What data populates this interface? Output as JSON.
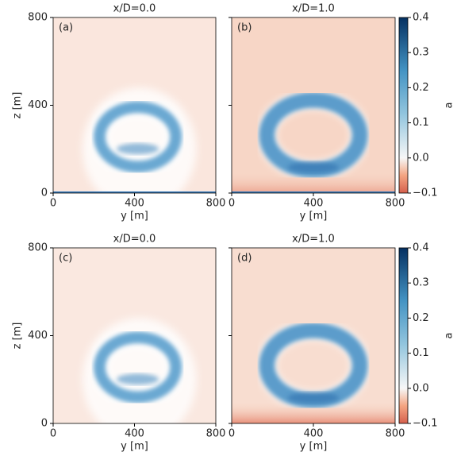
{
  "chart_data": [
    {
      "type": "heatmap",
      "title": "x/D=0.0",
      "panel_label": "(a)",
      "xlabel": "y [m]",
      "ylabel": "z [m]",
      "xlim": [
        0,
        800
      ],
      "ylim": [
        0,
        800
      ],
      "xticks": [
        0,
        400,
        800
      ],
      "yticks": [
        0,
        400,
        800
      ],
      "ytick_labels": true
    },
    {
      "type": "heatmap",
      "title": "x/D=1.0",
      "panel_label": "(b)",
      "xlabel": "y [m]",
      "xlim": [
        0,
        800
      ],
      "ylim": [
        0,
        800
      ],
      "xticks": [
        0,
        400,
        800
      ],
      "yticks": [
        0,
        400,
        800
      ],
      "ytick_labels": false,
      "colorbar": {
        "label": "a",
        "clim": [
          -0.1,
          0.4
        ],
        "ticks": [
          {
            "value": -0.1,
            "label": "−0.1"
          },
          {
            "value": 0,
            "label": "0.0"
          },
          0.1,
          0.2,
          0.3,
          0.4
        ]
      }
    },
    {
      "type": "heatmap",
      "title": "x/D=0.0",
      "panel_label": "(c)",
      "xlabel": "y [m]",
      "ylabel": "z [m]",
      "xlim": [
        0,
        800
      ],
      "ylim": [
        0,
        800
      ],
      "xticks": [
        0,
        400,
        800
      ],
      "yticks": [
        0,
        400,
        800
      ],
      "ytick_labels": true
    },
    {
      "type": "heatmap",
      "title": "x/D=1.0",
      "panel_label": "(d)",
      "xlabel": "y [m]",
      "xlim": [
        0,
        800
      ],
      "ylim": [
        0,
        800
      ],
      "xticks": [
        0,
        400,
        800
      ],
      "yticks": [
        0,
        400,
        800
      ],
      "ytick_labels": false,
      "colorbar": {
        "label": "a",
        "clim": [
          -0.1,
          0.4
        ],
        "ticks": [
          {
            "value": -0.1,
            "label": "−0.1"
          },
          {
            "value": 0,
            "label": "0.0"
          },
          0.1,
          0.2,
          0.3,
          0.4
        ]
      }
    }
  ]
}
